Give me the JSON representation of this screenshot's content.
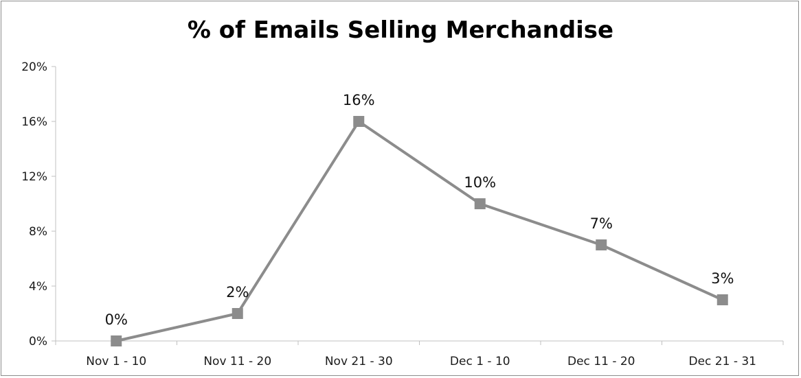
{
  "chart_data": {
    "type": "line",
    "title": "% of Emails Selling Merchandise",
    "categories": [
      "Nov 1 - 10",
      "Nov 11 - 20",
      "Nov 21 - 30",
      "Dec 1 - 10",
      "Dec 11 - 20",
      "Dec 21 - 31"
    ],
    "series": [
      {
        "values": [
          0,
          2,
          16,
          10,
          7,
          3
        ],
        "data_labels": [
          "0%",
          "2%",
          "16%",
          "10%",
          "7%",
          "3%"
        ],
        "color": "#8c8c8c"
      }
    ],
    "ylim": [
      0,
      20
    ],
    "yticks": [
      0,
      4,
      8,
      12,
      16,
      20
    ],
    "ytick_labels": [
      "0%",
      "4%",
      "8%",
      "12%",
      "16%",
      "20%"
    ],
    "grid": false,
    "legend": "none",
    "axis_color": "#c0c0c0"
  }
}
